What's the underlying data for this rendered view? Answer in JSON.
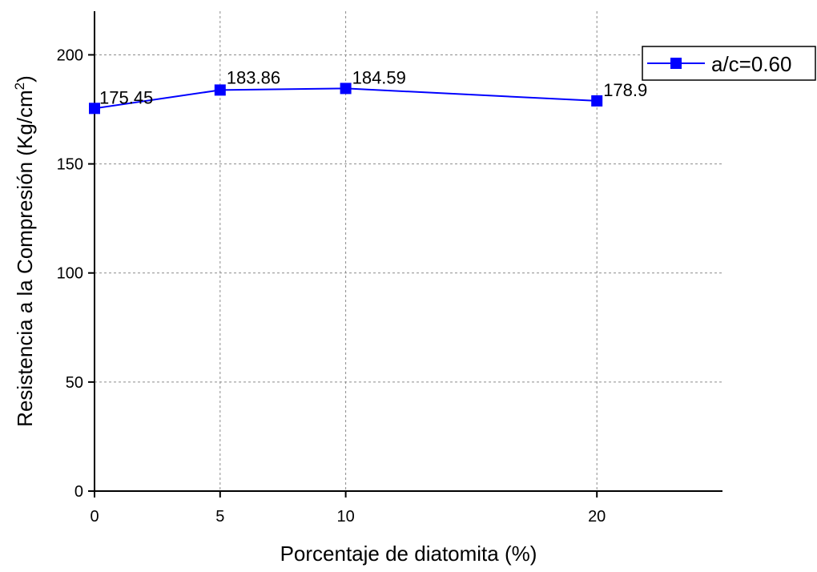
{
  "chart_data": {
    "type": "line",
    "title": "",
    "xlabel": "Porcentaje de diatomita (%)",
    "ylabel": "Resistencia a la  Compresión (Kg/cm",
    "ylabel_superscript": "2",
    "ylabel_close": ")",
    "xlim": [
      0,
      25
    ],
    "ylim": [
      0,
      220
    ],
    "x_ticks": [
      0,
      5,
      10,
      20
    ],
    "y_ticks": [
      0,
      50,
      100,
      150,
      200
    ],
    "grid": true,
    "legend_position": "top-right",
    "series": [
      {
        "name": "a/c=0.60",
        "color": "#0000ff",
        "marker": "square",
        "x": [
          0,
          5,
          10,
          20
        ],
        "y": [
          175.45,
          183.86,
          184.59,
          178.9
        ],
        "labels": [
          "175.45",
          "183.86",
          "184.59",
          "178.9"
        ]
      }
    ]
  }
}
